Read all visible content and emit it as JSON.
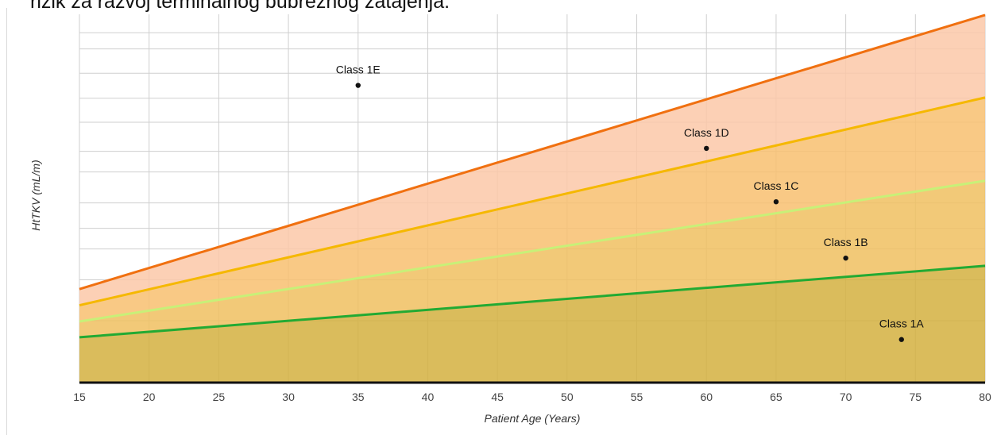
{
  "header": {
    "text": "rizik za razvoj terminalnog bubrežnog zatajenja."
  },
  "chart_data": {
    "type": "area",
    "xlabel": "Patient Age (Years)",
    "ylabel": "HtTKV (mL/m)",
    "xlim": [
      15,
      80
    ],
    "ylim": [
      0,
      1
    ],
    "x_ticks": [
      15,
      20,
      25,
      30,
      35,
      40,
      45,
      50,
      55,
      60,
      65,
      70,
      75,
      80
    ],
    "y_grid": [
      0.168,
      0.279,
      0.363,
      0.419,
      0.488,
      0.572,
      0.628,
      0.707,
      0.772,
      0.84,
      0.906,
      0.95
    ],
    "grid": true,
    "boundaries": [
      {
        "color": "#22aa33",
        "x": [
          15,
          80
        ],
        "y": [
          0.123,
          0.317
        ]
      },
      {
        "color": "#c8f078",
        "x": [
          15,
          80
        ],
        "y": [
          0.166,
          0.548
        ]
      },
      {
        "color": "#f5b800",
        "x": [
          15,
          80
        ],
        "y": [
          0.21,
          0.774
        ]
      },
      {
        "color": "#f07010",
        "x": [
          15,
          80
        ],
        "y": [
          0.254,
          0.998
        ]
      }
    ],
    "bands": [
      {
        "color": "#d4b040",
        "opacity": 0.85
      },
      {
        "color": "#f0c060",
        "opacity": 0.85
      },
      {
        "color": "#f8c070",
        "opacity": 0.85
      },
      {
        "color": "#fcc8a8",
        "opacity": 0.85
      }
    ],
    "points": [
      {
        "label": "Class 1A",
        "x": 74,
        "y": 0.117
      },
      {
        "label": "Class 1B",
        "x": 70,
        "y": 0.338
      },
      {
        "label": "Class 1C",
        "x": 65,
        "y": 0.491
      },
      {
        "label": "Class 1D",
        "x": 60,
        "y": 0.636
      },
      {
        "label": "Class 1E",
        "x": 35,
        "y": 0.807
      }
    ]
  }
}
